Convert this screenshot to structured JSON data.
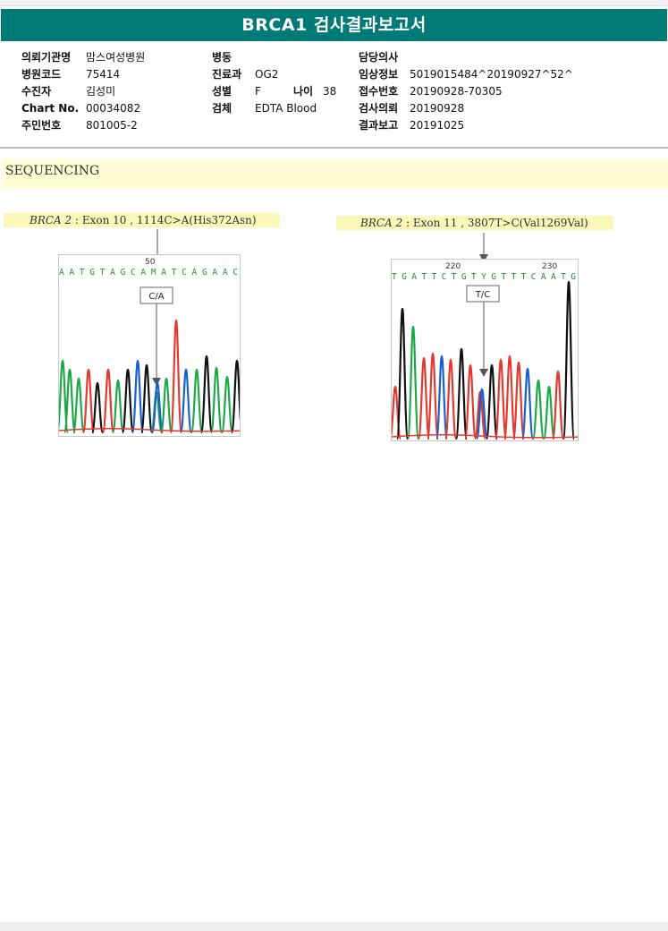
{
  "report": {
    "title": "BRCA1 검사결과보고서"
  },
  "patient_info": {
    "col1": [
      {
        "label": "의뢰기관명",
        "value": "맘스여성병원"
      },
      {
        "label": "병원코드",
        "value": "75414"
      },
      {
        "label": "수진자",
        "value": "김성미"
      },
      {
        "label": "Chart No.",
        "value": "00034082"
      },
      {
        "label": "주민번호",
        "value": "801005-2"
      }
    ],
    "col2": [
      {
        "label": "병동",
        "value": ""
      },
      {
        "label": "진료과",
        "value": "OG2"
      },
      {
        "label": "성별",
        "value": "F"
      },
      {
        "label": "검체",
        "value": "EDTA Blood"
      }
    ],
    "age": {
      "label": "나이",
      "value": "38"
    },
    "col3": [
      {
        "label": "담당의사",
        "value": ""
      },
      {
        "label": "임상정보",
        "value": "5019015484^20190927^52^"
      },
      {
        "label": "접수번호",
        "value": "20190928-70305"
      },
      {
        "label": "검사의뢰",
        "value": "20190928"
      },
      {
        "label": "결과보고",
        "value": "20191025"
      }
    ]
  },
  "section": {
    "title": "SEQUENCING"
  },
  "variants": [
    {
      "gene": "BRCA 2",
      "description": ": Exon 10 , 1114C>A(His372Asn)",
      "position_label": "50",
      "sequence": "A A T G T A G C A M A T C A G A A C",
      "call_label": "C/A"
    },
    {
      "gene": "BRCA 2",
      "description": ": Exon 11 , 3807T>C(Val1269Val)",
      "position_labels": [
        "220",
        "230"
      ],
      "sequence": "T G A T T C T G T Y G T T T C A A T G",
      "call_label": "T/C"
    }
  ],
  "colors": {
    "header": "#007a76",
    "highlight": "#fbf8b9",
    "base_A": "#1fa84a",
    "base_C": "#1a5fd0",
    "base_G": "#111111",
    "base_T": "#e23a2e",
    "ambiguous": "#cc33cc"
  }
}
